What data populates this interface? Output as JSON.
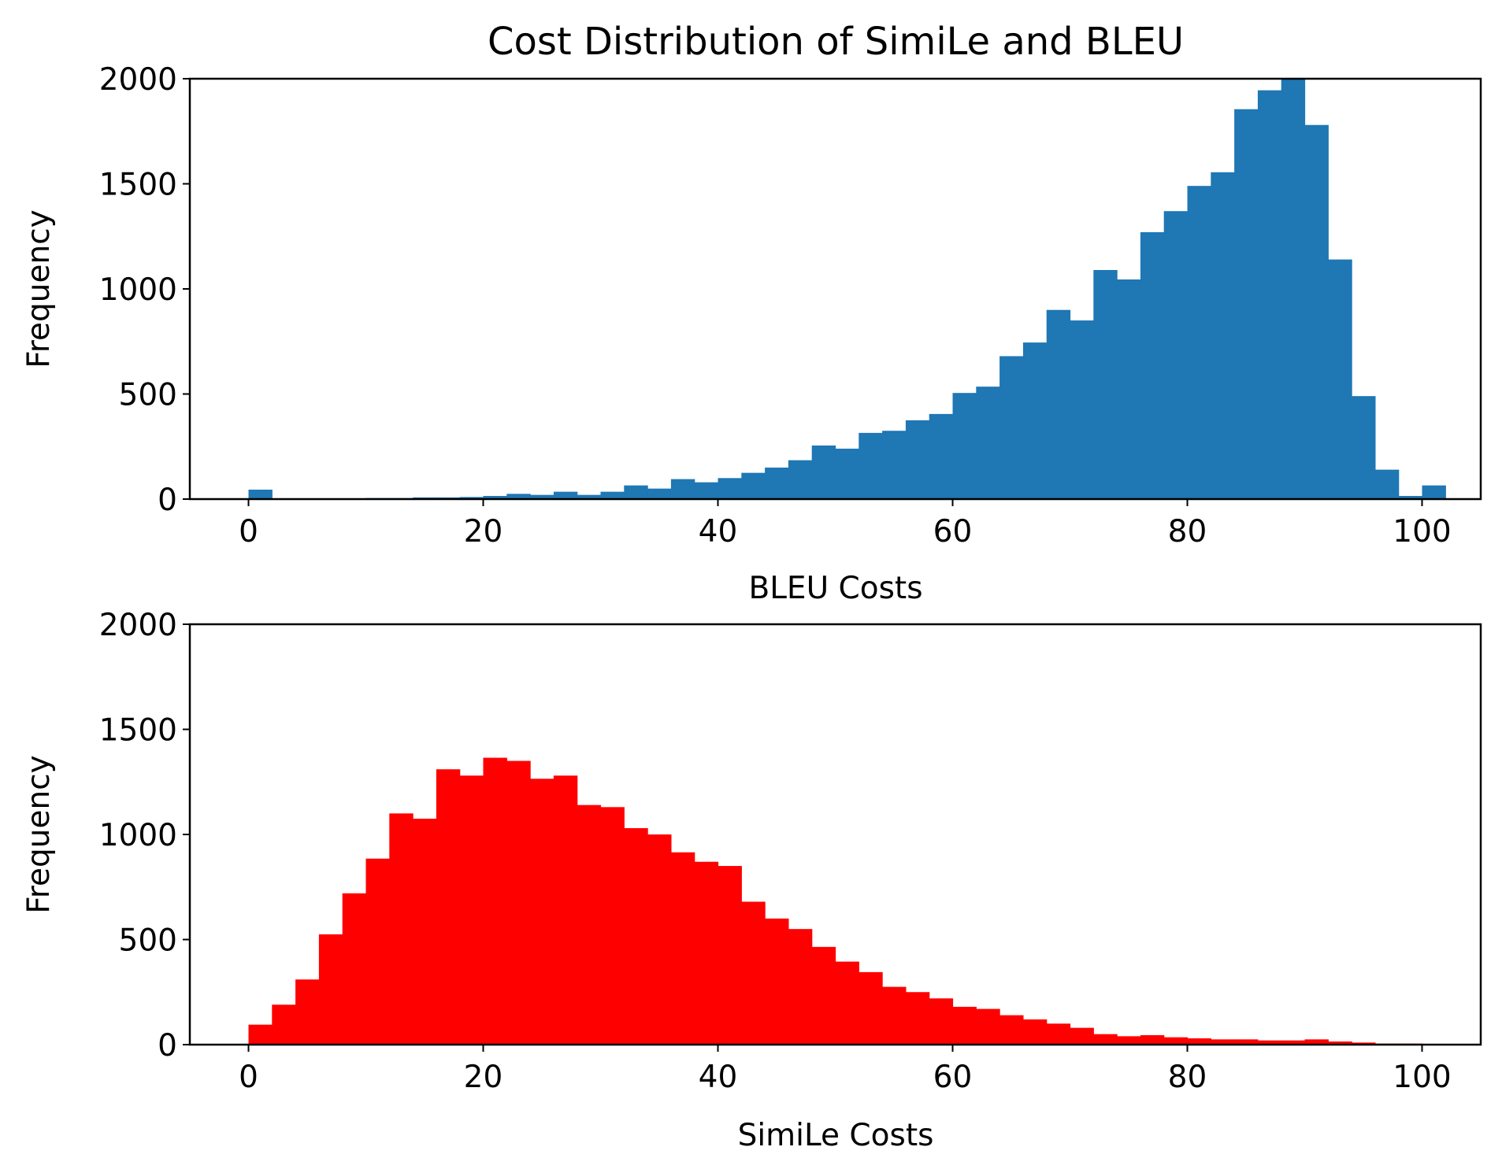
{
  "figure_title": "Cost Distribution of SimiLe and BLEU",
  "chart_data": [
    {
      "type": "bar",
      "subtype": "histogram",
      "title": "Cost Distribution of SimiLe and BLEU",
      "xlabel": "BLEU Costs",
      "ylabel": "Frequency",
      "xlim": [
        -5,
        105
      ],
      "ylim": [
        0,
        2000
      ],
      "xticks": [
        0,
        20,
        40,
        60,
        80,
        100
      ],
      "yticks": [
        0,
        500,
        1000,
        1500,
        2000
      ],
      "color": "#1f77b4",
      "bin_width": 2,
      "bin_start": 0,
      "values": [
        45,
        0,
        0,
        0,
        0,
        5,
        5,
        8,
        8,
        10,
        15,
        25,
        20,
        35,
        20,
        35,
        65,
        50,
        95,
        80,
        100,
        125,
        150,
        185,
        255,
        240,
        315,
        325,
        375,
        405,
        505,
        535,
        680,
        745,
        900,
        850,
        1090,
        1045,
        1270,
        1370,
        1490,
        1555,
        1855,
        1945,
        2000,
        1780,
        1140,
        490,
        140,
        15,
        65
      ]
    },
    {
      "type": "bar",
      "subtype": "histogram",
      "xlabel": "SimiLe Costs",
      "ylabel": "Frequency",
      "xlim": [
        -5,
        105
      ],
      "ylim": [
        0,
        2000
      ],
      "xticks": [
        0,
        20,
        40,
        60,
        80,
        100
      ],
      "yticks": [
        0,
        500,
        1000,
        1500,
        2000
      ],
      "color": "#ff0000",
      "bin_width": 2,
      "bin_start": 0,
      "values": [
        95,
        190,
        310,
        525,
        720,
        885,
        1100,
        1075,
        1310,
        1280,
        1365,
        1350,
        1265,
        1280,
        1140,
        1130,
        1030,
        1000,
        915,
        870,
        850,
        680,
        600,
        550,
        465,
        395,
        345,
        275,
        250,
        220,
        180,
        170,
        140,
        120,
        100,
        80,
        50,
        40,
        45,
        35,
        30,
        25,
        25,
        20,
        20,
        25,
        15,
        10,
        5,
        5
      ]
    }
  ]
}
